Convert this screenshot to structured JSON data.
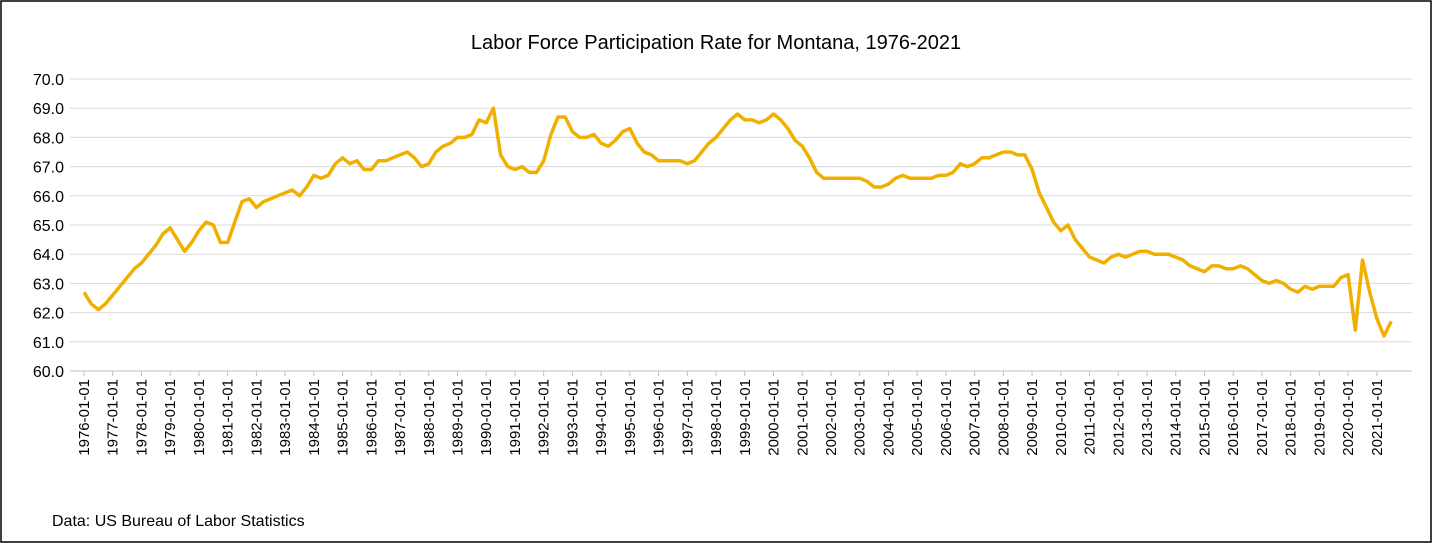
{
  "chart_data": {
    "type": "line",
    "title": "Labor Force Participation Rate for Montana, 1976-2021",
    "source": "Data: US Bureau of Labor Statistics",
    "x": [
      "1976-01-01",
      "1976-04-01",
      "1976-07-01",
      "1976-10-01",
      "1977-01-01",
      "1977-04-01",
      "1977-07-01",
      "1977-10-01",
      "1978-01-01",
      "1978-04-01",
      "1978-07-01",
      "1978-10-01",
      "1979-01-01",
      "1979-04-01",
      "1979-07-01",
      "1979-10-01",
      "1980-01-01",
      "1980-04-01",
      "1980-07-01",
      "1980-10-01",
      "1981-01-01",
      "1981-04-01",
      "1981-07-01",
      "1981-10-01",
      "1982-01-01",
      "1982-04-01",
      "1982-07-01",
      "1982-10-01",
      "1983-01-01",
      "1983-04-01",
      "1983-07-01",
      "1983-10-01",
      "1984-01-01",
      "1984-04-01",
      "1984-07-01",
      "1984-10-01",
      "1985-01-01",
      "1985-04-01",
      "1985-07-01",
      "1985-10-01",
      "1986-01-01",
      "1986-04-01",
      "1986-07-01",
      "1986-10-01",
      "1987-01-01",
      "1987-04-01",
      "1987-07-01",
      "1987-10-01",
      "1988-01-01",
      "1988-04-01",
      "1988-07-01",
      "1988-10-01",
      "1989-01-01",
      "1989-04-01",
      "1989-07-01",
      "1989-10-01",
      "1990-01-01",
      "1990-04-01",
      "1990-07-01",
      "1990-10-01",
      "1991-01-01",
      "1991-04-01",
      "1991-07-01",
      "1991-10-01",
      "1992-01-01",
      "1992-04-01",
      "1992-07-01",
      "1992-10-01",
      "1993-01-01",
      "1993-04-01",
      "1993-07-01",
      "1993-10-01",
      "1994-01-01",
      "1994-04-01",
      "1994-07-01",
      "1994-10-01",
      "1995-01-01",
      "1995-04-01",
      "1995-07-01",
      "1995-10-01",
      "1996-01-01",
      "1996-04-01",
      "1996-07-01",
      "1996-10-01",
      "1997-01-01",
      "1997-04-01",
      "1997-07-01",
      "1997-10-01",
      "1998-01-01",
      "1998-04-01",
      "1998-07-01",
      "1998-10-01",
      "1999-01-01",
      "1999-04-01",
      "1999-07-01",
      "1999-10-01",
      "2000-01-01",
      "2000-04-01",
      "2000-07-01",
      "2000-10-01",
      "2001-01-01",
      "2001-04-01",
      "2001-07-01",
      "2001-10-01",
      "2002-01-01",
      "2002-04-01",
      "2002-07-01",
      "2002-10-01",
      "2003-01-01",
      "2003-04-01",
      "2003-07-01",
      "2003-10-01",
      "2004-01-01",
      "2004-04-01",
      "2004-07-01",
      "2004-10-01",
      "2005-01-01",
      "2005-04-01",
      "2005-07-01",
      "2005-10-01",
      "2006-01-01",
      "2006-04-01",
      "2006-07-01",
      "2006-10-01",
      "2007-01-01",
      "2007-04-01",
      "2007-07-01",
      "2007-10-01",
      "2008-01-01",
      "2008-04-01",
      "2008-07-01",
      "2008-10-01",
      "2009-01-01",
      "2009-04-01",
      "2009-07-01",
      "2009-10-01",
      "2010-01-01",
      "2010-04-01",
      "2010-07-01",
      "2010-10-01",
      "2011-01-01",
      "2011-04-01",
      "2011-07-01",
      "2011-10-01",
      "2012-01-01",
      "2012-04-01",
      "2012-07-01",
      "2012-10-01",
      "2013-01-01",
      "2013-04-01",
      "2013-07-01",
      "2013-10-01",
      "2014-01-01",
      "2014-04-01",
      "2014-07-01",
      "2014-10-01",
      "2015-01-01",
      "2015-04-01",
      "2015-07-01",
      "2015-10-01",
      "2016-01-01",
      "2016-04-01",
      "2016-07-01",
      "2016-10-01",
      "2017-01-01",
      "2017-04-01",
      "2017-07-01",
      "2017-10-01",
      "2018-01-01",
      "2018-04-01",
      "2018-07-01",
      "2018-10-01",
      "2019-01-01",
      "2019-04-01",
      "2019-07-01",
      "2019-10-01",
      "2020-01-01",
      "2020-04-01",
      "2020-07-01",
      "2020-10-01",
      "2021-01-01",
      "2021-04-01",
      "2021-07-01"
    ],
    "series": [
      {
        "name": "Labor Force Participation Rate",
        "color": "#f0b000",
        "values": [
          62.7,
          62.3,
          62.1,
          62.3,
          62.6,
          62.9,
          63.2,
          63.5,
          63.7,
          64.0,
          64.3,
          64.7,
          64.9,
          64.5,
          64.1,
          64.4,
          64.8,
          65.1,
          65.0,
          64.4,
          64.4,
          65.1,
          65.8,
          65.9,
          65.6,
          65.8,
          65.9,
          66.0,
          66.1,
          66.2,
          66.0,
          66.3,
          66.7,
          66.6,
          66.7,
          67.1,
          67.3,
          67.1,
          67.2,
          66.9,
          66.9,
          67.2,
          67.2,
          67.3,
          67.4,
          67.5,
          67.3,
          67.0,
          67.1,
          67.5,
          67.7,
          67.8,
          68.0,
          68.0,
          68.1,
          68.6,
          68.5,
          69.0,
          67.4,
          67.0,
          66.9,
          67.0,
          66.8,
          66.8,
          67.2,
          68.1,
          68.7,
          68.7,
          68.2,
          68.0,
          68.0,
          68.1,
          67.8,
          67.7,
          67.9,
          68.2,
          68.3,
          67.8,
          67.5,
          67.4,
          67.2,
          67.2,
          67.2,
          67.2,
          67.1,
          67.2,
          67.5,
          67.8,
          68.0,
          68.3,
          68.6,
          68.8,
          68.6,
          68.6,
          68.5,
          68.6,
          68.8,
          68.6,
          68.3,
          67.9,
          67.7,
          67.3,
          66.8,
          66.6,
          66.6,
          66.6,
          66.6,
          66.6,
          66.6,
          66.5,
          66.3,
          66.3,
          66.4,
          66.6,
          66.7,
          66.6,
          66.6,
          66.6,
          66.6,
          66.7,
          66.7,
          66.8,
          67.1,
          67.0,
          67.1,
          67.3,
          67.3,
          67.4,
          67.5,
          67.5,
          67.4,
          67.4,
          66.9,
          66.1,
          65.6,
          65.1,
          64.8,
          65.0,
          64.5,
          64.2,
          63.9,
          63.8,
          63.7,
          63.9,
          64.0,
          63.9,
          64.0,
          64.1,
          64.1,
          64.0,
          64.0,
          64.0,
          63.9,
          63.8,
          63.6,
          63.5,
          63.4,
          63.6,
          63.6,
          63.5,
          63.5,
          63.6,
          63.5,
          63.3,
          63.1,
          63.0,
          63.1,
          63.0,
          62.8,
          62.7,
          62.9,
          62.8,
          62.9,
          62.9,
          62.9,
          63.2,
          63.3,
          61.4,
          63.8,
          62.7,
          61.8,
          61.2,
          61.7
        ]
      }
    ],
    "xticks": [
      "1976-01-01",
      "1977-01-01",
      "1978-01-01",
      "1979-01-01",
      "1980-01-01",
      "1981-01-01",
      "1982-01-01",
      "1983-01-01",
      "1984-01-01",
      "1985-01-01",
      "1986-01-01",
      "1987-01-01",
      "1988-01-01",
      "1989-01-01",
      "1990-01-01",
      "1991-01-01",
      "1992-01-01",
      "1993-01-01",
      "1994-01-01",
      "1995-01-01",
      "1996-01-01",
      "1997-01-01",
      "1998-01-01",
      "1999-01-01",
      "2000-01-01",
      "2001-01-01",
      "2002-01-01",
      "2003-01-01",
      "2004-01-01",
      "2005-01-01",
      "2006-01-01",
      "2007-01-01",
      "2008-01-01",
      "2009-01-01",
      "2010-01-01",
      "2011-01-01",
      "2012-01-01",
      "2013-01-01",
      "2014-01-01",
      "2015-01-01",
      "2016-01-01",
      "2017-01-01",
      "2018-01-01",
      "2019-01-01",
      "2020-01-01",
      "2021-01-01"
    ],
    "ylim": [
      60,
      70
    ],
    "yticks": [
      {
        "value": 60,
        "label": "60.0"
      },
      {
        "value": 61,
        "label": "61.0"
      },
      {
        "value": 62,
        "label": "62.0"
      },
      {
        "value": 63,
        "label": "63.0"
      },
      {
        "value": 64,
        "label": "64.0"
      },
      {
        "value": 65,
        "label": "65.0"
      },
      {
        "value": 66,
        "label": "66.0"
      },
      {
        "value": 67,
        "label": "67.0"
      },
      {
        "value": 68,
        "label": "68.0"
      },
      {
        "value": 69,
        "label": "69.0"
      },
      {
        "value": 70,
        "label": "70.0"
      }
    ],
    "grid": true
  }
}
